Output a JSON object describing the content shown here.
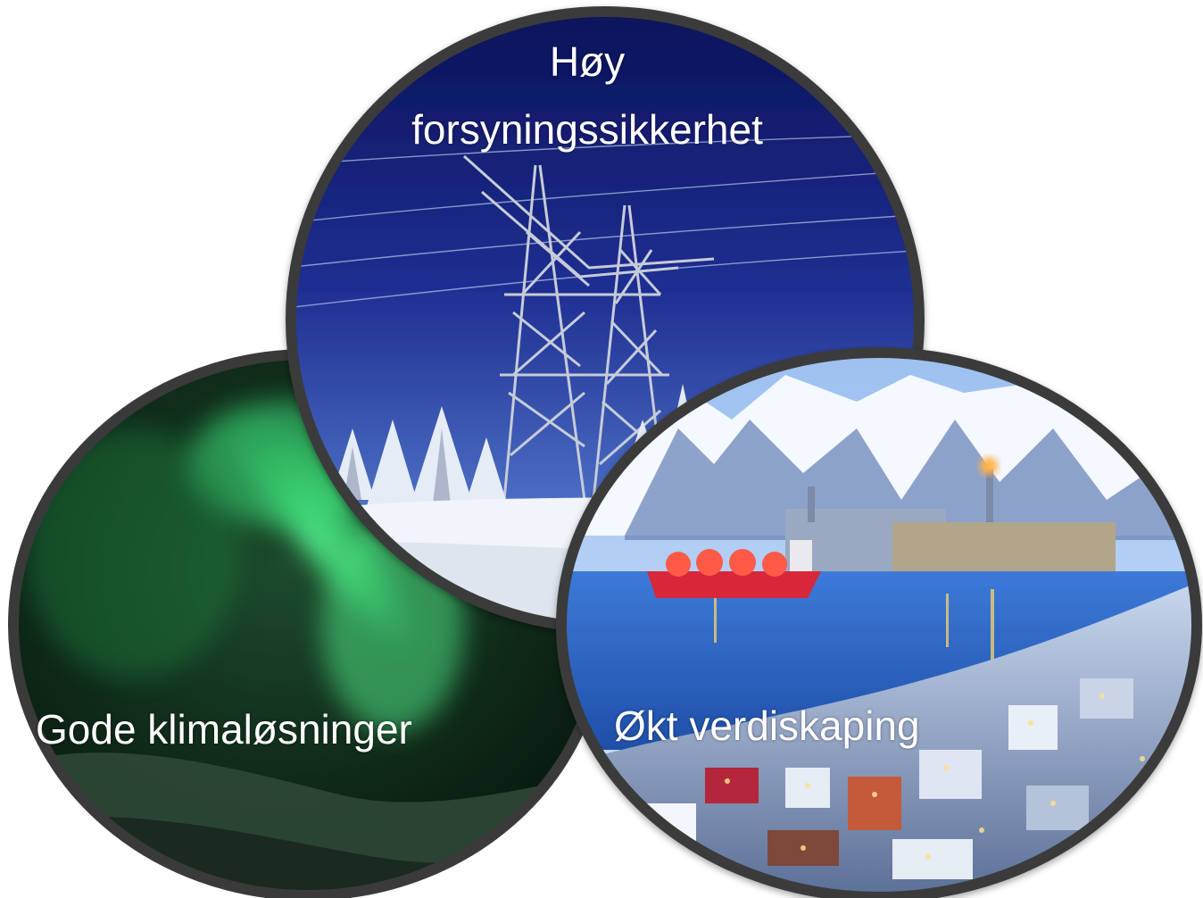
{
  "diagram": {
    "circles": [
      {
        "id": "top",
        "label_lines": [
          "Høy",
          "forsyningssikkerhet"
        ],
        "theme": "power-pylon-winter-night",
        "colors": {
          "sky_top": "#0c1660",
          "sky_bottom": "#3d5fb5",
          "snow": "#eef3fb"
        }
      },
      {
        "id": "left",
        "label": "Gode klimaløsninger",
        "theme": "northern-lights",
        "colors": {
          "aurora": "#2ee07a",
          "sky": "#0a1f14"
        }
      },
      {
        "id": "right",
        "label": "Økt verdiskaping",
        "theme": "arctic-industrial-harbour",
        "colors": {
          "sky": "#b8d0f0",
          "water": "#2f6fd0",
          "ship": "#e0303a"
        }
      }
    ],
    "ring_color": "#3a3a3a",
    "background": "#ffffff"
  }
}
